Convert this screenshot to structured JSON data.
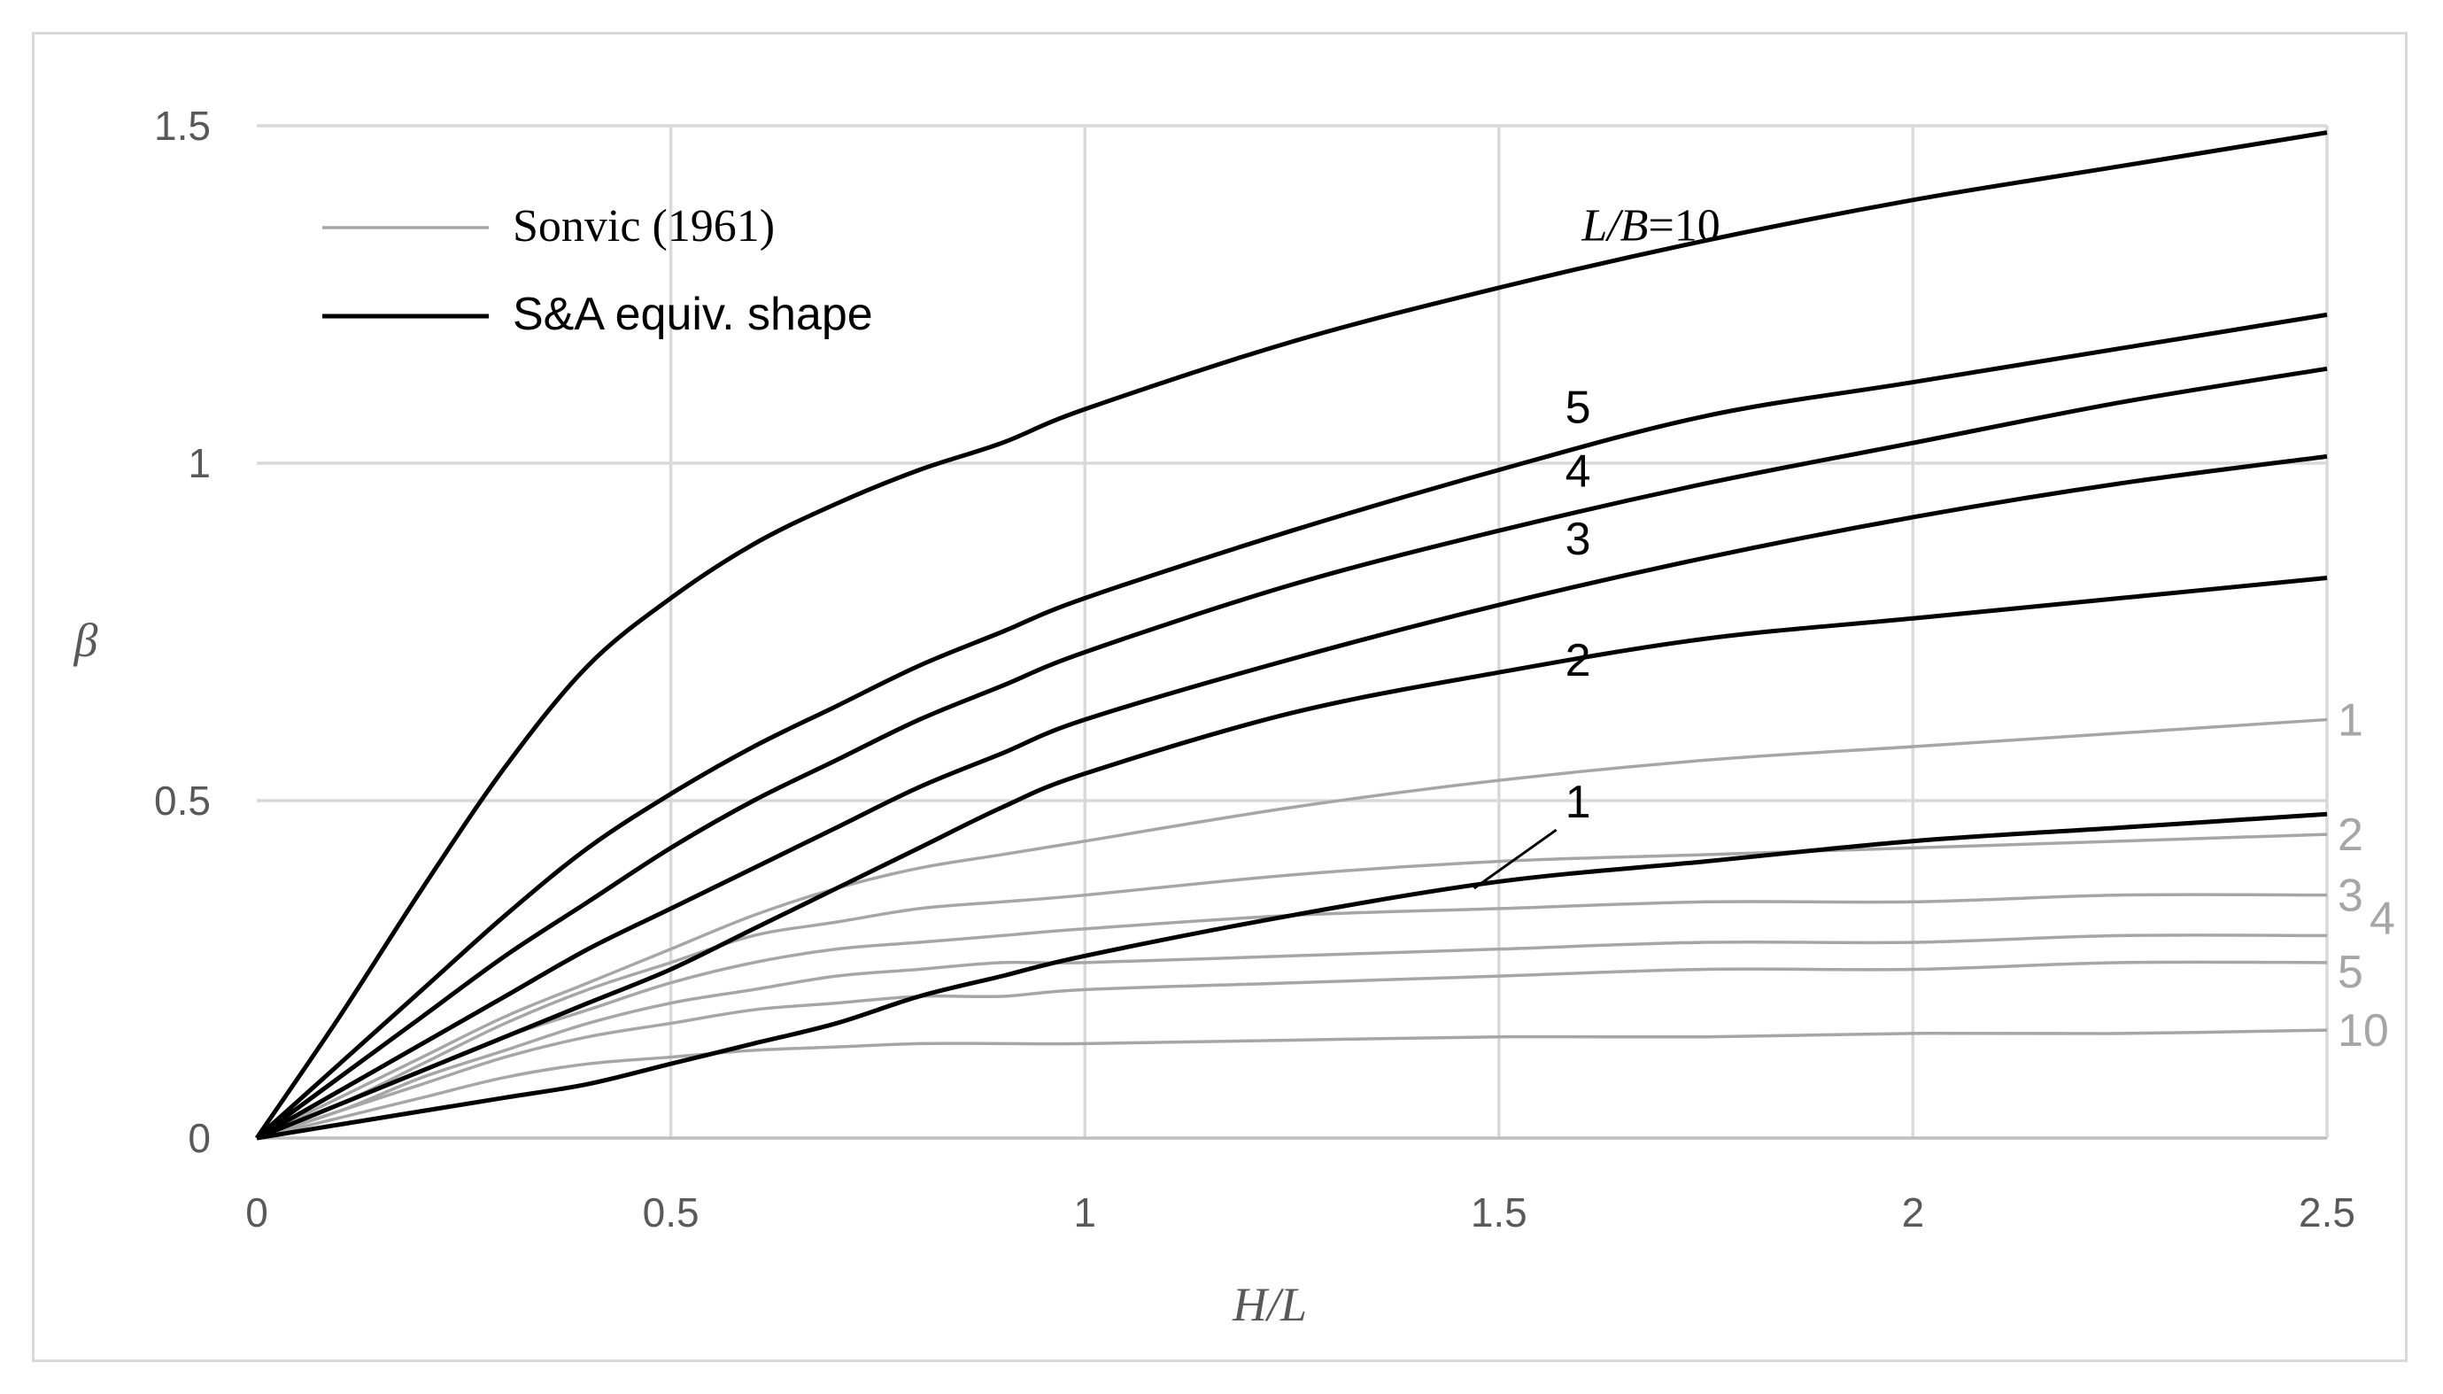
{
  "chart_data": {
    "type": "line",
    "title": "",
    "xlabel": "H/L",
    "ylabel": "β",
    "xlim": [
      0,
      2.5
    ],
    "ylim": [
      0,
      1.5
    ],
    "x_ticks": [
      "0",
      "0.5",
      "1",
      "1.5",
      "2",
      "2.5"
    ],
    "y_ticks": [
      "0",
      "0.5",
      "1",
      "1.5"
    ],
    "grid": true,
    "legend_position": "top-left",
    "legend": [
      {
        "label": "Sonvic (1961)",
        "color": "#a6a6a6"
      },
      {
        "label": "S&A equiv. shape",
        "color": "#000000"
      }
    ],
    "x": [
      0,
      0.1,
      0.2,
      0.3,
      0.4,
      0.5,
      0.6,
      0.7,
      0.8,
      0.9,
      1.0,
      1.25,
      1.5,
      1.75,
      2.0,
      2.25,
      2.5
    ],
    "series": [
      {
        "group": "S&A equiv. shape",
        "label": "10",
        "color": "#000000",
        "values": [
          0,
          0.18,
          0.37,
          0.55,
          0.7,
          0.8,
          0.88,
          0.94,
          0.99,
          1.03,
          1.08,
          1.18,
          1.26,
          1.33,
          1.39,
          1.44,
          1.49
        ]
      },
      {
        "group": "S&A equiv. shape",
        "label": "5",
        "color": "#000000",
        "values": [
          0,
          0.11,
          0.22,
          0.33,
          0.43,
          0.51,
          0.58,
          0.64,
          0.7,
          0.75,
          0.8,
          0.9,
          0.99,
          1.07,
          1.12,
          1.17,
          1.22
        ]
      },
      {
        "group": "S&A equiv. shape",
        "label": "4",
        "color": "#000000",
        "values": [
          0,
          0.09,
          0.18,
          0.27,
          0.35,
          0.43,
          0.5,
          0.56,
          0.62,
          0.67,
          0.72,
          0.82,
          0.9,
          0.97,
          1.03,
          1.09,
          1.14
        ]
      },
      {
        "group": "S&A equiv. shape",
        "label": "3",
        "color": "#000000",
        "values": [
          0,
          0.07,
          0.14,
          0.21,
          0.28,
          0.34,
          0.4,
          0.46,
          0.52,
          0.57,
          0.62,
          0.71,
          0.79,
          0.86,
          0.92,
          0.97,
          1.01
        ]
      },
      {
        "group": "S&A equiv. shape",
        "label": "2",
        "color": "#000000",
        "values": [
          0,
          0.05,
          0.1,
          0.15,
          0.2,
          0.25,
          0.31,
          0.37,
          0.43,
          0.49,
          0.54,
          0.63,
          0.69,
          0.74,
          0.77,
          0.8,
          0.83
        ]
      },
      {
        "group": "S&A equiv. shape",
        "label": "1",
        "color": "#000000",
        "values": [
          0,
          0.02,
          0.04,
          0.06,
          0.08,
          0.11,
          0.14,
          0.17,
          0.21,
          0.24,
          0.27,
          0.33,
          0.38,
          0.41,
          0.44,
          0.46,
          0.48
        ]
      },
      {
        "group": "Sonvic (1961)",
        "label": "1",
        "color": "#a6a6a6",
        "values": [
          0,
          0.06,
          0.12,
          0.18,
          0.23,
          0.28,
          0.33,
          0.37,
          0.4,
          0.42,
          0.44,
          0.49,
          0.53,
          0.56,
          0.58,
          0.6,
          0.62
        ]
      },
      {
        "group": "Sonvic (1961)",
        "label": "2",
        "color": "#a6a6a6",
        "values": [
          0,
          0.05,
          0.11,
          0.17,
          0.22,
          0.26,
          0.3,
          0.32,
          0.34,
          0.35,
          0.36,
          0.39,
          0.41,
          0.42,
          0.43,
          0.44,
          0.45
        ]
      },
      {
        "group": "Sonvic (1961)",
        "label": "3",
        "color": "#a6a6a6",
        "values": [
          0,
          0.05,
          0.1,
          0.15,
          0.19,
          0.23,
          0.26,
          0.28,
          0.29,
          0.3,
          0.31,
          0.33,
          0.34,
          0.35,
          0.35,
          0.36,
          0.36
        ]
      },
      {
        "group": "Sonvic (1961)",
        "label": "4",
        "color": "#a6a6a6",
        "values": [
          0,
          0.04,
          0.09,
          0.13,
          0.17,
          0.2,
          0.22,
          0.24,
          0.25,
          0.26,
          0.26,
          0.27,
          0.28,
          0.29,
          0.29,
          0.3,
          0.3
        ]
      },
      {
        "group": "Sonvic (1961)",
        "label": "5",
        "color": "#a6a6a6",
        "values": [
          0,
          0.04,
          0.08,
          0.12,
          0.15,
          0.17,
          0.19,
          0.2,
          0.21,
          0.21,
          0.22,
          0.23,
          0.24,
          0.25,
          0.25,
          0.26,
          0.26
        ]
      },
      {
        "group": "Sonvic (1961)",
        "label": "10",
        "color": "#a6a6a6",
        "values": [
          0,
          0.03,
          0.06,
          0.09,
          0.11,
          0.12,
          0.13,
          0.135,
          0.14,
          0.14,
          0.14,
          0.145,
          0.15,
          0.15,
          0.155,
          0.155,
          0.16
        ]
      }
    ],
    "annotations": [
      {
        "text_parts": [
          "L/B",
          "=10"
        ],
        "italic_part": "L/B",
        "x": 1.6,
        "y": 1.33
      },
      {
        "text": "5",
        "x": 1.58,
        "y": 1.06
      },
      {
        "text": "4",
        "x": 1.58,
        "y": 0.965
      },
      {
        "text": "3",
        "x": 1.58,
        "y": 0.865
      },
      {
        "text": "2",
        "x": 1.58,
        "y": 0.685
      },
      {
        "text": "1",
        "x": 1.58,
        "y": 0.475,
        "leader_to": {
          "x": 1.47,
          "y": 0.37
        }
      }
    ]
  }
}
